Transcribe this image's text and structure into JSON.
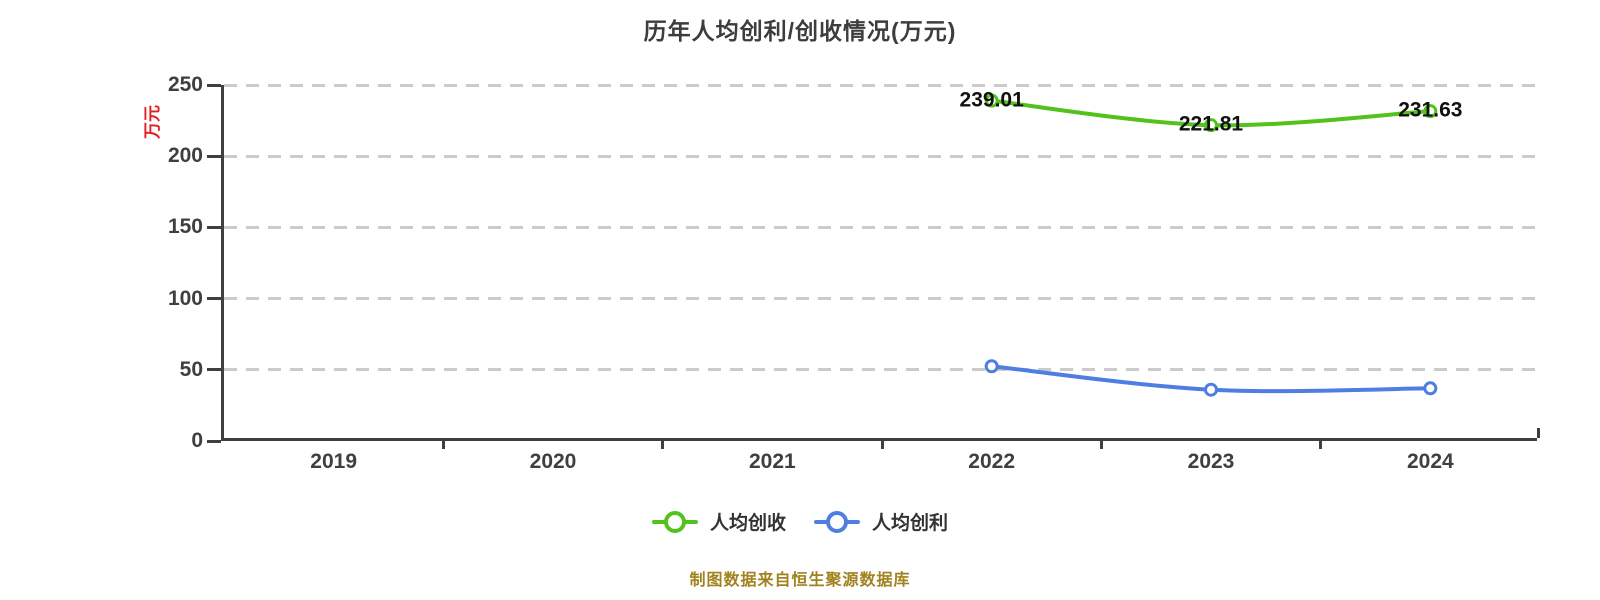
{
  "title": "历年人均创利/创收情况(万元)",
  "y_axis_unit": "万元",
  "source_note": "制图数据来自恒生聚源数据库",
  "colors": {
    "background": "#ffffff",
    "grid": "#cbcbcb",
    "axis": "#3f3f3f",
    "title_text": "#3d3d3d",
    "axis_text": "#3f3f3f",
    "unit_text": "#e02222",
    "source_text": "#a1821f",
    "data_label": "#111111",
    "revenue_green": "#53c21d",
    "profit_blue": "#4d7ee0"
  },
  "chart_data": {
    "type": "line",
    "title": "历年人均创利/创收情况(万元)",
    "xlabel": "",
    "ylabel": "万元",
    "categories": [
      "2019",
      "2020",
      "2021",
      "2022",
      "2023",
      "2024"
    ],
    "series": [
      {
        "name": "人均创收",
        "color": "#53c21d",
        "values": [
          null,
          null,
          null,
          239.01,
          221.81,
          231.63
        ],
        "point_labels": [
          null,
          null,
          null,
          "239.01",
          "221.81",
          "231.63"
        ]
      },
      {
        "name": "人均创利",
        "color": "#4d7ee0",
        "values": [
          null,
          null,
          null,
          52.5,
          36,
          37
        ],
        "point_labels": [
          null,
          null,
          null,
          null,
          null,
          null
        ]
      }
    ],
    "ylim": [
      0,
      250
    ],
    "yticks": [
      0,
      50,
      100,
      150,
      200,
      250
    ],
    "grid": "dashed-horizontal",
    "legend_position": "bottom",
    "smooth": true
  }
}
